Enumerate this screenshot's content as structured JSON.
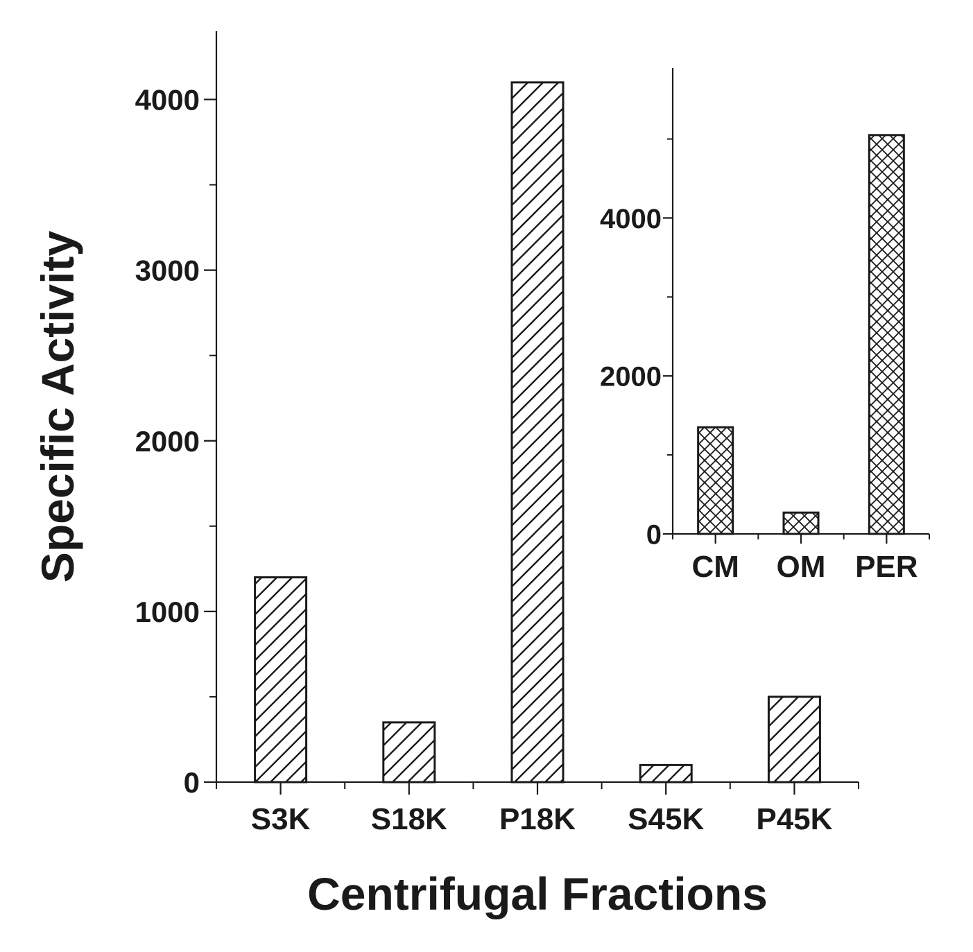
{
  "chart_data": [
    {
      "type": "bar",
      "title": "",
      "xlabel": "Centrifugal Fractions",
      "ylabel": "Specific Activity",
      "categories": [
        "S3K",
        "S18K",
        "P18K",
        "S45K",
        "P45K"
      ],
      "values": [
        1200,
        350,
        4100,
        100,
        500
      ],
      "ylim": [
        0,
        4400
      ],
      "yticks": [
        0,
        1000,
        2000,
        3000,
        4000
      ],
      "yticks_minor": [
        500,
        1500,
        2500,
        3500
      ],
      "pattern": "diagonal-hatch",
      "grid": false,
      "legend": "none"
    },
    {
      "type": "bar",
      "role": "inset",
      "title": "",
      "xlabel": "",
      "ylabel": "",
      "categories": [
        "CM",
        "OM",
        "PER"
      ],
      "values": [
        1350,
        270,
        5050
      ],
      "ylim": [
        0,
        5900
      ],
      "yticks": [
        0,
        2000,
        4000
      ],
      "yticks_minor": [
        1000,
        3000,
        5000
      ],
      "pattern": "cross-hatch",
      "grid": false,
      "legend": "none"
    }
  ],
  "colors": {
    "axis": "#1a1a1a",
    "bar_stroke": "#1a1a1a",
    "bar_fill": "#ffffff",
    "background": "#ffffff"
  }
}
